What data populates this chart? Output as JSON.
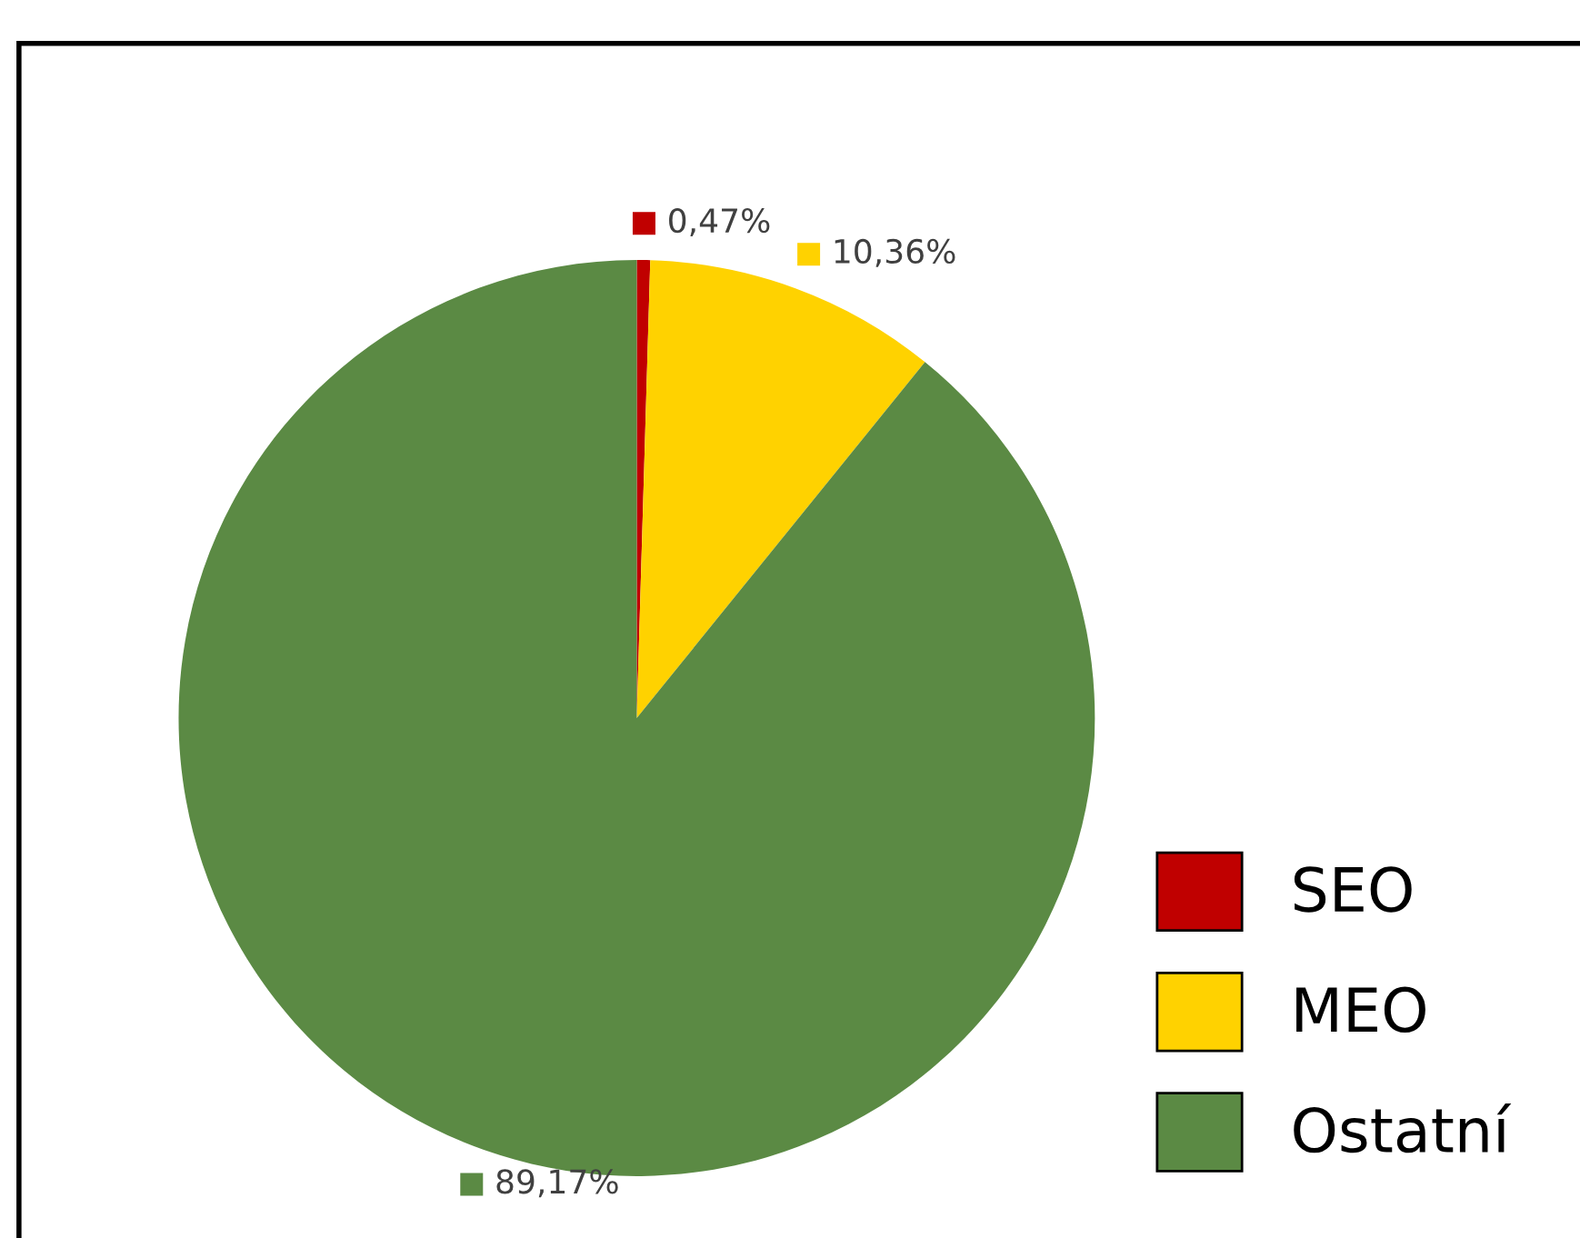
{
  "chart_data": {
    "type": "pie",
    "categories": [
      "SEO",
      "MEO",
      "Ostatní"
    ],
    "values": [
      0.47,
      10.36,
      89.17
    ],
    "colors": [
      "#c00000",
      "#ffd200",
      "#5b8a44"
    ],
    "value_labels": [
      "0,47%",
      "10,36%",
      "89,17%"
    ],
    "legend": "bottom right"
  }
}
